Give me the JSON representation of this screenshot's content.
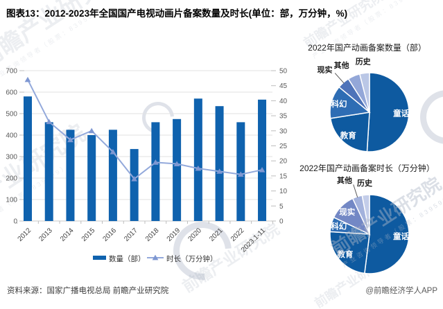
{
  "header": {
    "title": "图表13：2012-2023年全国国产电视动画片备案数量及时长(单位：部，万分钟，%)"
  },
  "footer": {
    "source": "资料来源：国家广播电视总局 前瞻产业研究院",
    "credit": "@前瞻经济学人APP"
  },
  "watermark": {
    "brand": "前瞻产业研究院",
    "tagline": "产业咨询领导者（股票：839599）"
  },
  "colors": {
    "bar": "#0f62ae",
    "line": "#93a9db",
    "marker": "#7e97d2",
    "pie_dark_blue": "#0e5aa0",
    "grid": "#e2e2e2",
    "axis_text": "#595959"
  },
  "chart_data": [
    {
      "type": "bar",
      "title": "国产电视动画片备案数量及时长",
      "categories": [
        "2012",
        "2013",
        "2014",
        "2015",
        "2016",
        "2017",
        "2018",
        "2019",
        "2020",
        "2021",
        "2022",
        "2023.1-11"
      ],
      "series": [
        {
          "name": "数量（部）",
          "type": "bar",
          "axis": "left",
          "color": "#0f62ae",
          "values": [
            580,
            460,
            425,
            400,
            425,
            335,
            460,
            475,
            570,
            535,
            460,
            565
          ]
        },
        {
          "name": "时长（万分钟）",
          "type": "line",
          "axis": "right",
          "color": "#93a9db",
          "marker_color": "#7e97d2",
          "values": [
            47,
            33,
            27,
            30,
            23,
            14,
            19.5,
            19,
            17.5,
            16.5,
            15.5,
            17
          ]
        }
      ],
      "left_axis": {
        "min": 0,
        "max": 700,
        "step": 100
      },
      "right_axis": {
        "min": 0,
        "max": 50,
        "step": 5
      },
      "grid": true,
      "legend_position": "bottom"
    },
    {
      "type": "pie",
      "title": "2022年国产动画备案数量（部）",
      "unit": "%",
      "slices": [
        {
          "label": "童话",
          "value": 51,
          "color": "#0e5aa0",
          "placement": "inside"
        },
        {
          "label": "教育",
          "value": 21.5,
          "color": "#0e5aa0",
          "placement": "inside"
        },
        {
          "label": "科幻",
          "value": 13.5,
          "color": "#2e6db4",
          "placement": "inside"
        },
        {
          "label": "现实",
          "value": 5,
          "color": "#4e73b9",
          "placement": "leader"
        },
        {
          "label": "其他",
          "value": 5,
          "color": "#93a7d8",
          "placement": "outside"
        },
        {
          "label": "历史",
          "value": 4,
          "color": "#bac7e6",
          "placement": "outside"
        }
      ]
    },
    {
      "type": "pie",
      "title": "2022年国产动画备案时长（万分钟）",
      "unit": "%",
      "slices": [
        {
          "label": "童话",
          "value": 52,
          "color": "#0e5aa0",
          "placement": "inside"
        },
        {
          "label": "教育",
          "value": 24,
          "color": "#0e5aa0",
          "placement": "inside"
        },
        {
          "label": "科幻",
          "value": 6,
          "color": "#2e6db4",
          "placement": "inside"
        },
        {
          "label": "现实",
          "value": 11,
          "color": "#7388c5",
          "placement": "inside"
        },
        {
          "label": "其他",
          "value": 4,
          "color": "#a3b2dc",
          "placement": "leader"
        },
        {
          "label": "历史",
          "value": 3,
          "color": "#c3cde9",
          "placement": "outside"
        }
      ]
    }
  ]
}
